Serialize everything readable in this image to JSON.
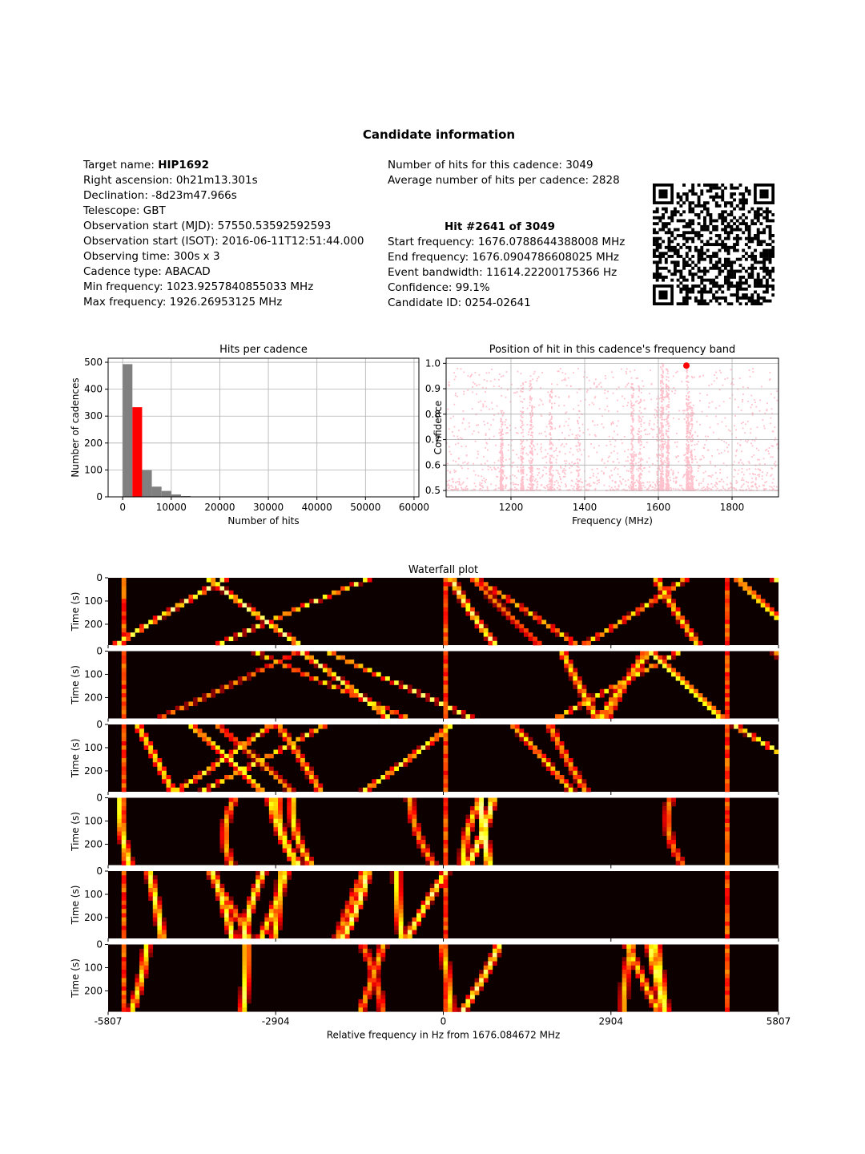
{
  "title": "Candidate information",
  "info_left": {
    "target_label": "Target name:",
    "target_value": "HIP1692",
    "lines": [
      "Right ascension: 0h21m13.301s",
      "Declination: -8d23m47.966s",
      "Telescope: GBT",
      "Observation start (MJD): 57550.53592592593",
      "Observation start (ISOT): 2016-06-11T12:51:44.000",
      "Observing time: 300s x 3",
      "Cadence type: ABACAD",
      "Min frequency: 1023.9257840855033 MHz",
      "Max frequency: 1926.26953125 MHz"
    ]
  },
  "info_right": {
    "lines_top": [
      "Number of hits for this cadence: 3049",
      "Average number of hits per cadence: 2828"
    ],
    "hit_heading": "Hit #2641 of 3049",
    "lines_bottom": [
      "Start frequency: 1676.0788644388008 MHz",
      "End frequency: 1676.0904786608025 MHz",
      "Event bandwidth: 11614.22200175366 Hz",
      "Confidence: 99.1%",
      "Candidate ID: 0254-02641"
    ]
  },
  "qr_icon": "qr-code-icon",
  "chart_data": [
    {
      "type": "bar",
      "title": "Hits per cadence",
      "xlabel": "Number of hits",
      "ylabel": "Number of cadences",
      "xlim": [
        -3000,
        61000
      ],
      "ylim": [
        0,
        515
      ],
      "xticks": [
        0,
        10000,
        20000,
        30000,
        40000,
        50000,
        60000
      ],
      "yticks": [
        0,
        100,
        200,
        300,
        400,
        500
      ],
      "grid": true,
      "bin_width": 2000,
      "bins": [
        {
          "x0": 0,
          "value": 493,
          "color": "#808080"
        },
        {
          "x0": 2000,
          "value": 333,
          "color": "#ff0000"
        },
        {
          "x0": 4000,
          "value": 99,
          "color": "#808080"
        },
        {
          "x0": 6000,
          "value": 38,
          "color": "#808080"
        },
        {
          "x0": 8000,
          "value": 22,
          "color": "#808080"
        },
        {
          "x0": 10000,
          "value": 9,
          "color": "#808080"
        },
        {
          "x0": 12000,
          "value": 3,
          "color": "#808080"
        },
        {
          "x0": 16000,
          "value": 1,
          "color": "#808080"
        },
        {
          "x0": 22000,
          "value": 1,
          "color": "#808080"
        }
      ]
    },
    {
      "type": "scatter",
      "title": "Position of hit in this cadence's frequency band",
      "xlabel": "Frequency (MHz)",
      "ylabel": "Confidence",
      "xlim": [
        1024,
        1926
      ],
      "ylim": [
        0.475,
        1.02
      ],
      "xticks": [
        1200,
        1400,
        1600,
        1800
      ],
      "yticks": [
        0.5,
        0.6,
        0.7,
        0.8,
        0.9,
        1.0
      ],
      "grid": true,
      "background_color": "#ffc0cb",
      "highlight": {
        "x": 1676.08,
        "y": 0.991,
        "color": "#ff0000"
      }
    },
    {
      "type": "heatmap",
      "title": "Waterfall plot",
      "xlabel": "Relative frequency in Hz from 1676.084672 MHz",
      "ylabel": "Time (s)",
      "xlim": [
        -5807,
        5807
      ],
      "xtick_labels": [
        "-5807",
        "-2904",
        "0",
        "2904",
        "5807"
      ],
      "yticks": [
        0,
        100,
        200
      ],
      "ylim": [
        0,
        290
      ],
      "panels": 6,
      "colormap": "hot"
    }
  ]
}
